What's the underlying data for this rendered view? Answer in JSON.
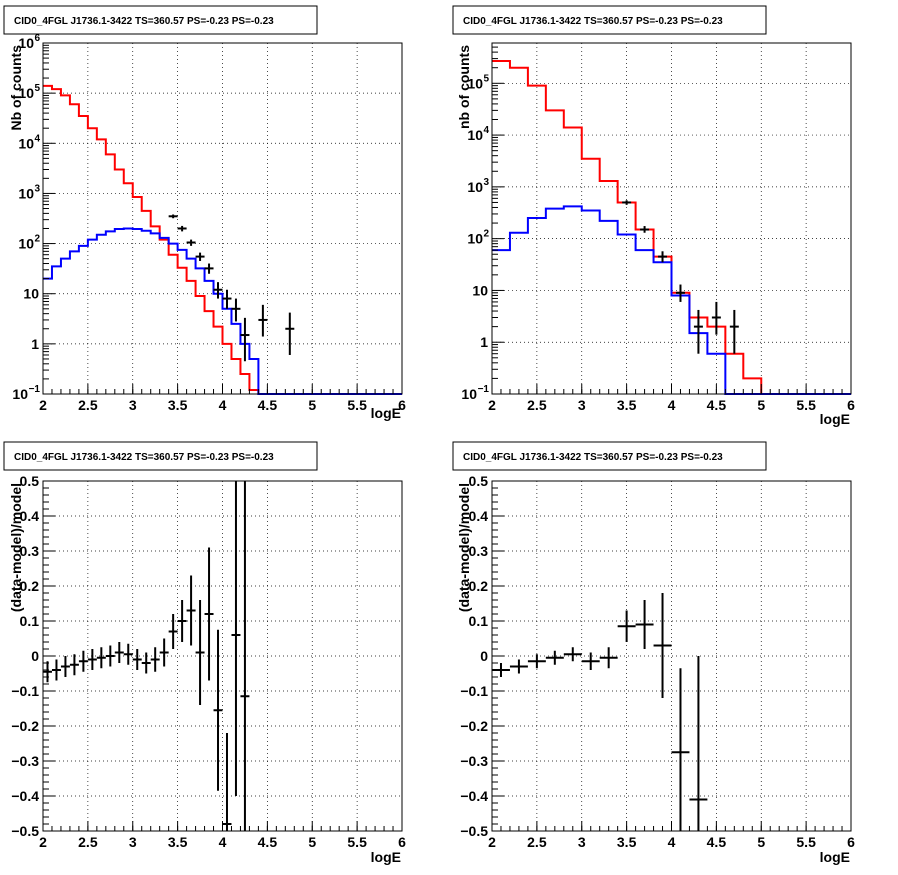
{
  "charts": [
    {
      "title": "CID0_4FGL J1736.1-3422 TS=360.57 PS=-0.23 PS=-0.23",
      "xlabel": "logE",
      "ylabel": "Nb of counts"
    },
    {
      "title": "CID0_4FGL J1736.1-3422 TS=360.57 PS=-0.23 PS=-0.23",
      "xlabel": "logE",
      "ylabel": "nb of counts"
    },
    {
      "title": "CID0_4FGL J1736.1-3422 TS=360.57 PS=-0.23 PS=-0.23",
      "xlabel": "logE",
      "ylabel": "(data-model)/model"
    },
    {
      "title": "CID0_4FGL J1736.1-3422 TS=360.57 PS=-0.23 PS=-0.23",
      "xlabel": "logE",
      "ylabel": "(data-model)/model"
    }
  ],
  "chart_data": [
    {
      "type": "line",
      "title": "CID0_4FGL J1736.1-3422 TS=360.57 PS=-0.23 PS=-0.23",
      "xlabel": "logE",
      "ylabel": "Nb of counts",
      "xlim": [
        2,
        6
      ],
      "ylim": [
        0.1,
        1000000
      ],
      "yscale": "log",
      "grid": true,
      "xticks": [
        "2",
        "2.5",
        "3",
        "3.5",
        "4",
        "4.5",
        "5",
        "5.5",
        "6"
      ],
      "yticks": [
        {
          "value": 0.1,
          "label": "10",
          "exp": "−1"
        },
        {
          "value": 1,
          "label": "1",
          "exp": ""
        },
        {
          "value": 10,
          "label": "10",
          "exp": ""
        },
        {
          "value": 100,
          "label": "10",
          "exp": "2"
        },
        {
          "value": 1000,
          "label": "10",
          "exp": "3"
        },
        {
          "value": 10000,
          "label": "10",
          "exp": "4"
        },
        {
          "value": 100000,
          "label": "10",
          "exp": "5"
        },
        {
          "value": 1000000,
          "label": "10",
          "exp": "6"
        }
      ],
      "bin_edges": [
        2.0,
        2.1,
        2.2,
        2.3,
        2.4,
        2.5,
        2.6,
        2.7,
        2.8,
        2.9,
        3.0,
        3.1,
        3.2,
        3.3,
        3.4,
        3.5,
        3.6,
        3.7,
        3.8,
        3.9,
        4.0,
        4.1,
        4.2,
        4.3,
        4.4,
        4.5,
        4.6,
        4.7,
        4.8,
        4.9,
        5.0,
        5.1,
        5.2,
        5.3,
        5.4,
        5.5,
        5.6,
        5.7,
        5.8,
        5.9,
        6.0
      ],
      "series": [
        {
          "color": "#ff0000",
          "values": [
            140000,
            120000,
            90000,
            60000,
            35000,
            20000,
            12000,
            6000,
            3000,
            1600,
            850,
            450,
            220,
            120,
            60,
            33,
            18,
            9,
            4.5,
            2.2,
            1.0,
            0.5,
            0.25,
            0.12,
            0.1,
            0.1,
            0.1,
            0.1,
            0.1,
            0.1,
            0.1,
            0.1,
            0.1,
            0.1,
            0.1,
            0.1,
            0.1,
            0.1,
            0.1,
            0.1
          ]
        },
        {
          "color": "#0000ff",
          "values": [
            20,
            35,
            50,
            70,
            90,
            120,
            150,
            175,
            195,
            200,
            195,
            180,
            160,
            130,
            100,
            75,
            50,
            32,
            18,
            10,
            5,
            2.5,
            1.0,
            0.5,
            0.1,
            0.1,
            0.1,
            0.1,
            0.1,
            0.1,
            0.1,
            0.1,
            0.1,
            0.1,
            0.1,
            0.1,
            0.1,
            0.1,
            0.1,
            0.1
          ]
        }
      ],
      "points": [
        {
          "x": 3.45,
          "y": 350,
          "lo": 320,
          "hi": 380
        },
        {
          "x": 3.55,
          "y": 200,
          "lo": 175,
          "hi": 225
        },
        {
          "x": 3.65,
          "y": 105,
          "lo": 90,
          "hi": 120
        },
        {
          "x": 3.75,
          "y": 55,
          "lo": 45,
          "hi": 66
        },
        {
          "x": 3.85,
          "y": 32,
          "lo": 25,
          "hi": 40
        },
        {
          "x": 3.95,
          "y": 12,
          "lo": 8,
          "hi": 17
        },
        {
          "x": 4.05,
          "y": 8,
          "lo": 5,
          "hi": 12
        },
        {
          "x": 4.15,
          "y": 5,
          "lo": 2.8,
          "hi": 8
        },
        {
          "x": 4.25,
          "y": 1.5,
          "lo": 0.45,
          "hi": 3.3
        },
        {
          "x": 4.45,
          "y": 3,
          "lo": 1.4,
          "hi": 6
        },
        {
          "x": 4.75,
          "y": 2,
          "lo": 0.6,
          "hi": 4.2
        }
      ]
    },
    {
      "type": "line",
      "title": "CID0_4FGL J1736.1-3422 TS=360.57 PS=-0.23 PS=-0.23",
      "xlabel": "logE",
      "ylabel": "nb of counts",
      "xlim": [
        2,
        6
      ],
      "ylim": [
        0.1,
        600000
      ],
      "yscale": "log",
      "grid": true,
      "xticks": [
        "2",
        "2.5",
        "3",
        "3.5",
        "4",
        "4.5",
        "5",
        "5.5",
        "6"
      ],
      "yticks": [
        {
          "value": 0.1,
          "label": "10",
          "exp": "−1"
        },
        {
          "value": 1,
          "label": "1",
          "exp": ""
        },
        {
          "value": 10,
          "label": "10",
          "exp": ""
        },
        {
          "value": 100,
          "label": "10",
          "exp": "2"
        },
        {
          "value": 1000,
          "label": "10",
          "exp": "3"
        },
        {
          "value": 10000,
          "label": "10",
          "exp": "4"
        },
        {
          "value": 100000,
          "label": "10",
          "exp": "5"
        }
      ],
      "bin_edges": [
        2.0,
        2.2,
        2.4,
        2.6,
        2.8,
        3.0,
        3.2,
        3.4,
        3.6,
        3.8,
        4.0,
        4.2,
        4.4,
        4.6,
        4.8,
        5.0,
        5.2,
        5.4,
        5.6,
        5.8,
        6.0
      ],
      "series": [
        {
          "color": "#ff0000",
          "values": [
            270000,
            200000,
            90000,
            30000,
            14000,
            3500,
            1300,
            500,
            150,
            45,
            9,
            3,
            2,
            0.6,
            0.2,
            0.1,
            0.1,
            0.1,
            0.1,
            0.1
          ]
        },
        {
          "color": "#0000ff",
          "values": [
            60,
            130,
            250,
            380,
            420,
            350,
            220,
            120,
            60,
            35,
            8,
            1.5,
            0.6,
            0.1,
            0.1,
            0.1,
            0.1,
            0.1,
            0.1,
            0.1
          ]
        }
      ],
      "points": [
        {
          "x": 3.5,
          "y": 500,
          "lo": 450,
          "hi": 550
        },
        {
          "x": 3.7,
          "y": 150,
          "lo": 130,
          "hi": 175
        },
        {
          "x": 3.9,
          "y": 45,
          "lo": 35,
          "hi": 57
        },
        {
          "x": 4.1,
          "y": 9,
          "lo": 6,
          "hi": 13
        },
        {
          "x": 4.3,
          "y": 2,
          "lo": 0.6,
          "hi": 4.2
        },
        {
          "x": 4.5,
          "y": 3,
          "lo": 1.4,
          "hi": 6
        },
        {
          "x": 4.7,
          "y": 2,
          "lo": 0.6,
          "hi": 4.2
        }
      ]
    },
    {
      "type": "scatter",
      "title": "CID0_4FGL J1736.1-3422 TS=360.57 PS=-0.23 PS=-0.23",
      "xlabel": "logE",
      "ylabel": "(data-model)/model",
      "xlim": [
        2,
        6
      ],
      "ylim": [
        -0.5,
        0.5
      ],
      "grid": true,
      "xticks": [
        "2",
        "2.5",
        "3",
        "3.5",
        "4",
        "4.5",
        "5",
        "5.5",
        "6"
      ],
      "yticks": [
        {
          "value": -0.5,
          "label": "−0.5"
        },
        {
          "value": -0.4,
          "label": "−0.4"
        },
        {
          "value": -0.3,
          "label": "−0.3"
        },
        {
          "value": -0.2,
          "label": "−0.2"
        },
        {
          "value": -0.1,
          "label": "−0.1"
        },
        {
          "value": 0,
          "label": "0"
        },
        {
          "value": 0.1,
          "label": "0.1"
        },
        {
          "value": 0.2,
          "label": "0.2"
        },
        {
          "value": 0.3,
          "label": "0.3"
        },
        {
          "value": 0.4,
          "label": "0.4"
        },
        {
          "value": 0.5,
          "label": "0.5"
        }
      ],
      "xerr": 0.05,
      "points": [
        {
          "x": 2.05,
          "y": -0.045,
          "err": 0.03
        },
        {
          "x": 2.15,
          "y": -0.04,
          "err": 0.03
        },
        {
          "x": 2.25,
          "y": -0.03,
          "err": 0.03
        },
        {
          "x": 2.35,
          "y": -0.025,
          "err": 0.03
        },
        {
          "x": 2.45,
          "y": -0.015,
          "err": 0.03
        },
        {
          "x": 2.55,
          "y": -0.01,
          "err": 0.03
        },
        {
          "x": 2.65,
          "y": -0.005,
          "err": 0.03
        },
        {
          "x": 2.75,
          "y": 0.0,
          "err": 0.03
        },
        {
          "x": 2.85,
          "y": 0.01,
          "err": 0.03
        },
        {
          "x": 2.95,
          "y": 0.005,
          "err": 0.03
        },
        {
          "x": 3.05,
          "y": -0.01,
          "err": 0.03
        },
        {
          "x": 3.15,
          "y": -0.02,
          "err": 0.03
        },
        {
          "x": 3.25,
          "y": -0.01,
          "err": 0.035
        },
        {
          "x": 3.35,
          "y": 0.01,
          "err": 0.04
        },
        {
          "x": 3.45,
          "y": 0.07,
          "err": 0.05
        },
        {
          "x": 3.55,
          "y": 0.1,
          "err": 0.06
        },
        {
          "x": 3.65,
          "y": 0.13,
          "err": 0.1
        },
        {
          "x": 3.75,
          "y": 0.01,
          "err": 0.15
        },
        {
          "x": 3.85,
          "y": 0.12,
          "err": 0.19
        },
        {
          "x": 3.95,
          "y": -0.155,
          "err": 0.23
        },
        {
          "x": 4.05,
          "y": -0.48,
          "err": 0.26
        },
        {
          "x": 4.15,
          "y": 0.06,
          "err": 0.46
        },
        {
          "x": 4.25,
          "y": -0.115,
          "err": 0.62
        }
      ]
    },
    {
      "type": "scatter",
      "title": "CID0_4FGL J1736.1-3422 TS=360.57 PS=-0.23 PS=-0.23",
      "xlabel": "logE",
      "ylabel": "(data-model)/model",
      "xlim": [
        2,
        6
      ],
      "ylim": [
        -0.5,
        0.5
      ],
      "grid": true,
      "xticks": [
        "2",
        "2.5",
        "3",
        "3.5",
        "4",
        "4.5",
        "5",
        "5.5",
        "6"
      ],
      "yticks": [
        {
          "value": -0.5,
          "label": "−0.5"
        },
        {
          "value": -0.4,
          "label": "−0.4"
        },
        {
          "value": -0.3,
          "label": "−0.3"
        },
        {
          "value": -0.2,
          "label": "−0.2"
        },
        {
          "value": -0.1,
          "label": "−0.1"
        },
        {
          "value": 0,
          "label": "0"
        },
        {
          "value": 0.1,
          "label": "0.1"
        },
        {
          "value": 0.2,
          "label": "0.2"
        },
        {
          "value": 0.3,
          "label": "0.3"
        },
        {
          "value": 0.4,
          "label": "0.4"
        },
        {
          "value": 0.5,
          "label": "0.5"
        }
      ],
      "xerr": 0.1,
      "points": [
        {
          "x": 2.1,
          "y": -0.04,
          "err": 0.02
        },
        {
          "x": 2.3,
          "y": -0.03,
          "err": 0.02
        },
        {
          "x": 2.5,
          "y": -0.015,
          "err": 0.02
        },
        {
          "x": 2.7,
          "y": -0.005,
          "err": 0.02
        },
        {
          "x": 2.9,
          "y": 0.005,
          "err": 0.02
        },
        {
          "x": 3.1,
          "y": -0.015,
          "err": 0.025
        },
        {
          "x": 3.3,
          "y": -0.005,
          "err": 0.03
        },
        {
          "x": 3.5,
          "y": 0.085,
          "err": 0.045
        },
        {
          "x": 3.7,
          "y": 0.09,
          "err": 0.07
        },
        {
          "x": 3.9,
          "y": 0.03,
          "err": 0.15
        },
        {
          "x": 4.1,
          "y": -0.275,
          "err": 0.24
        },
        {
          "x": 4.3,
          "y": -0.41,
          "err": 0.41
        }
      ]
    }
  ]
}
